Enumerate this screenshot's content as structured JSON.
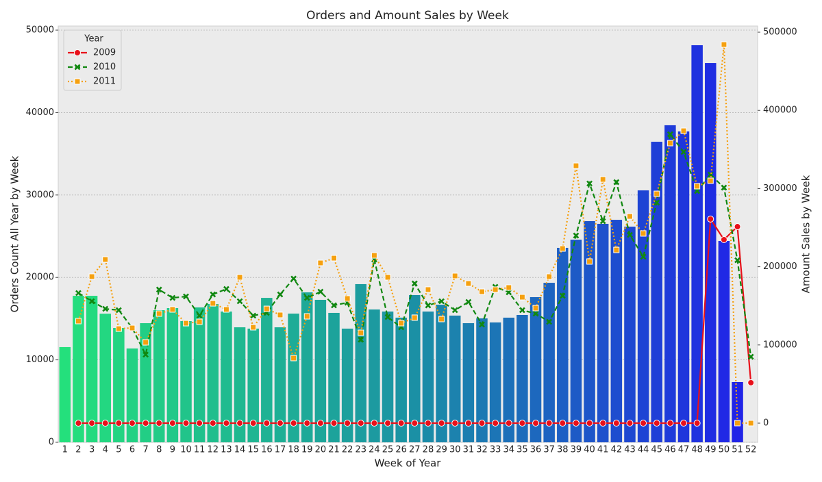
{
  "chart_data": {
    "type": "combo",
    "title": "Orders and Amount Sales by Week",
    "x_label": "Week of Year",
    "y_label": "Orders Count All Year by Week",
    "y2_label": "Amount Sales by Week",
    "categories": [
      "1",
      "2",
      "3",
      "4",
      "5",
      "6",
      "7",
      "8",
      "9",
      "10",
      "11",
      "12",
      "13",
      "14",
      "15",
      "16",
      "17",
      "18",
      "19",
      "20",
      "21",
      "22",
      "23",
      "24",
      "25",
      "26",
      "27",
      "28",
      "29",
      "30",
      "31",
      "32",
      "33",
      "34",
      "35",
      "36",
      "37",
      "38",
      "39",
      "40",
      "41",
      "42",
      "43",
      "44",
      "45",
      "46",
      "47",
      "48",
      "49",
      "50",
      "51",
      "52"
    ],
    "bars": {
      "values": [
        11550,
        17770,
        17770,
        15600,
        13870,
        11380,
        14450,
        16030,
        16280,
        14700,
        16360,
        16780,
        15860,
        13950,
        13790,
        17520,
        13950,
        15610,
        18190,
        17280,
        15700,
        13790,
        19190,
        16110,
        15860,
        15120,
        17860,
        15860,
        16690,
        15370,
        14450,
        15030,
        14540,
        15120,
        15450,
        17610,
        19350,
        23590,
        24580,
        26830,
        26500,
        26990,
        26160,
        30560,
        36460,
        38460,
        37710,
        48170,
        46010,
        24420,
        7310,
        null
      ],
      "color_stops": [
        "#24e07c",
        "#1b92a4",
        "#2020ea"
      ]
    },
    "legend_title": "Year",
    "legend": "upper left",
    "series": [
      {
        "name": "2009",
        "color": "#e8101a",
        "linestyle": "solid",
        "marker": "circle",
        "axis": "y2",
        "values": [
          null,
          0,
          0,
          0,
          0,
          0,
          0,
          0,
          0,
          0,
          0,
          0,
          0,
          0,
          0,
          0,
          0,
          0,
          0,
          0,
          0,
          0,
          0,
          0,
          0,
          0,
          0,
          0,
          0,
          0,
          0,
          0,
          0,
          0,
          0,
          0,
          0,
          0,
          0,
          0,
          0,
          0,
          0,
          0,
          0,
          0,
          0,
          0,
          261000,
          234700,
          251300,
          51700
        ]
      },
      {
        "name": "2010",
        "color": "#118811",
        "linestyle": "dashed",
        "marker": "x",
        "axis": "y2",
        "values": [
          null,
          166400,
          155900,
          146200,
          144500,
          121700,
          87600,
          170800,
          160200,
          162000,
          137500,
          164600,
          171600,
          155900,
          137500,
          141000,
          164600,
          184800,
          160200,
          168100,
          150700,
          154100,
          106800,
          209300,
          135700,
          122600,
          178600,
          150600,
          155900,
          144500,
          155000,
          126100,
          174300,
          167300,
          144500,
          140100,
          129600,
          162900,
          239900,
          306500,
          258300,
          308200,
          240800,
          212800,
          282000,
          369500,
          346800,
          296900,
          317900,
          301200,
          208400,
          84900
        ]
      },
      {
        "name": "2011",
        "color": "#f5a00f",
        "linestyle": "dotted",
        "marker": "square",
        "axis": "y2",
        "values": [
          null,
          130500,
          187400,
          209300,
          120800,
          121700,
          103300,
          140100,
          145400,
          127800,
          129600,
          153200,
          145400,
          186500,
          122600,
          146200,
          138400,
          83200,
          136600,
          204900,
          211000,
          159400,
          115600,
          214500,
          186500,
          127800,
          134900,
          170800,
          133100,
          188300,
          178600,
          168100,
          170800,
          173400,
          161100,
          147100,
          187400,
          223300,
          329200,
          206700,
          311700,
          221500,
          264400,
          242600,
          293300,
          358100,
          373900,
          303000,
          310000,
          484200,
          0,
          0
        ]
      }
    ],
    "ylim": [
      0,
      50500
    ],
    "yticks": [
      0,
      10000,
      20000,
      30000,
      40000,
      50000
    ],
    "y2lim": [
      -24500,
      507900
    ],
    "y2ticks": [
      0,
      100000,
      200000,
      300000,
      400000,
      500000
    ],
    "grid": true
  }
}
